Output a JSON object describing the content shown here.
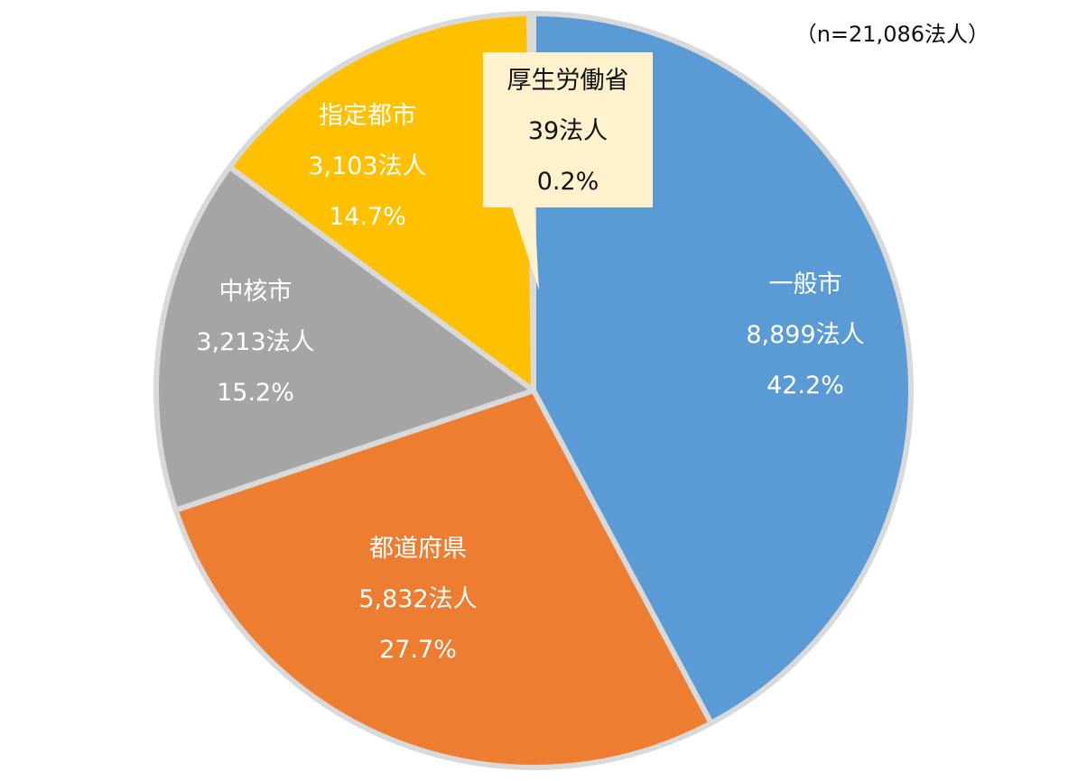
{
  "chart_data": {
    "type": "pie",
    "note": "（n=21,086法人）",
    "total": 21086,
    "unit": "法人",
    "slices": [
      {
        "name": "一般市",
        "value": 8899,
        "count_label": "8,899法人",
        "percent_label": "42.2%",
        "color": "#5b9bd5",
        "label_color": "#ffffff"
      },
      {
        "name": "都道府県",
        "value": 5832,
        "count_label": "5,832法人",
        "percent_label": "27.7%",
        "color": "#ed7d31",
        "label_color": "#ffffff"
      },
      {
        "name": "中核市",
        "value": 3213,
        "count_label": "3,213法人",
        "percent_label": "15.2%",
        "color": "#a5a5a5",
        "label_color": "#ffffff"
      },
      {
        "name": "指定都市",
        "value": 3103,
        "count_label": "3,103法人",
        "percent_label": "14.7%",
        "color": "#ffc000",
        "label_color": "#ffffff"
      },
      {
        "name": "厚生労働省",
        "value": 39,
        "count_label": "39法人",
        "percent_label": "0.2%",
        "color": "#4472c4",
        "label_color": "#111111",
        "callout": true,
        "callout_color": "#fff2cc"
      }
    ]
  }
}
